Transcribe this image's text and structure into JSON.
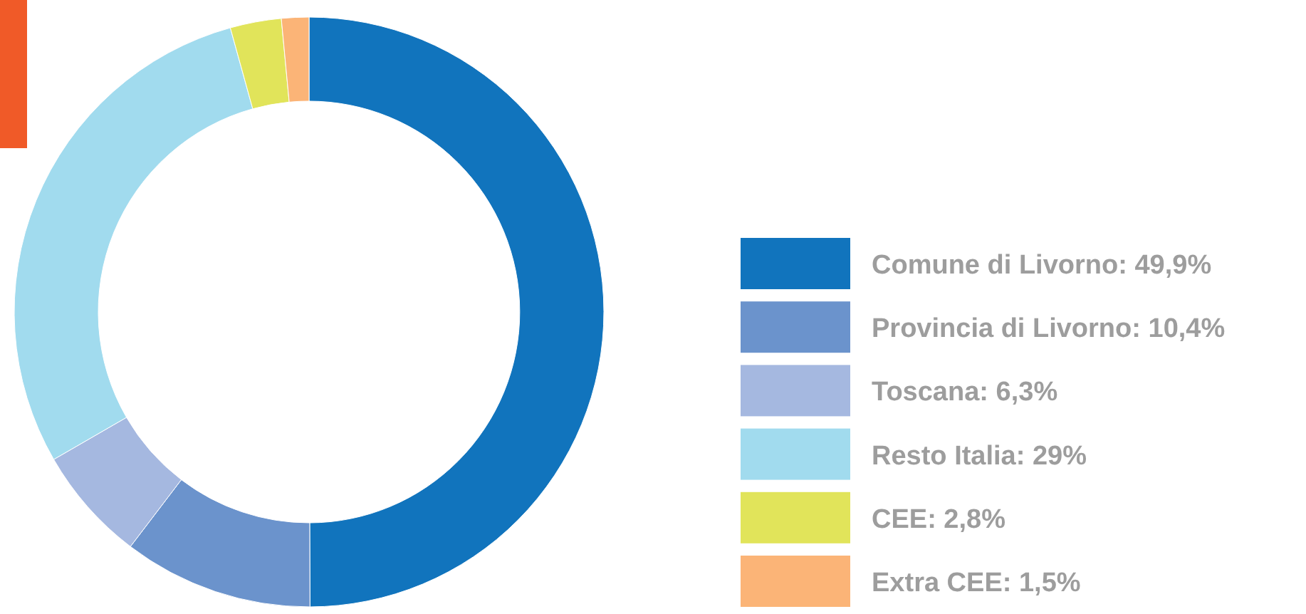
{
  "chart_data": {
    "type": "donut",
    "categories": [
      "Comune di Livorno",
      "Provincia di Livorno",
      "Toscana",
      "Resto Italia",
      "CEE",
      "Extra CEE"
    ],
    "values": [
      49.9,
      10.4,
      6.3,
      29,
      2.8,
      1.5
    ],
    "value_labels": [
      "49,9%",
      "10,4%",
      "6,3%",
      "29%",
      "2,8%",
      "1,5%"
    ],
    "colors": [
      "#1174bd",
      "#6b93cc",
      "#a5b8e0",
      "#a1dbee",
      "#e1e45a",
      "#fbb477"
    ],
    "legend": "right"
  }
}
